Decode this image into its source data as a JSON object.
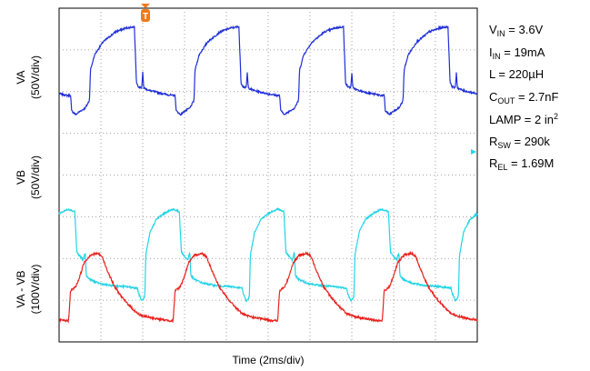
{
  "chart_data": {
    "type": "line",
    "title": "",
    "xlabel": "Time (2ms/div)",
    "grid": true,
    "grid_divisions": {
      "x": 10,
      "y": 8
    },
    "x_range_ms": [
      0,
      20
    ],
    "trigger_marker": "T",
    "period_ms": 5.0,
    "series": [
      {
        "name": "VA",
        "ylabel_line1": "VA",
        "ylabel_line2": "(50V/div)",
        "color": "#1f2fd6",
        "shape": [
          [
            0.0,
            0.0
          ],
          [
            0.15,
            0.0
          ],
          [
            0.2,
            -0.6
          ],
          [
            0.4,
            -0.75
          ],
          [
            0.6,
            -0.62
          ],
          [
            0.85,
            -0.5
          ],
          [
            1.05,
            -0.2
          ],
          [
            1.1,
            1.0
          ],
          [
            1.3,
            1.6
          ],
          [
            1.7,
            2.1
          ],
          [
            2.3,
            2.5
          ],
          [
            2.8,
            2.65
          ],
          [
            3.2,
            2.7
          ],
          [
            3.3,
            0.5
          ],
          [
            3.4,
            0.35
          ],
          [
            3.55,
            0.3
          ],
          [
            3.6,
            0.9
          ],
          [
            3.65,
            0.3
          ],
          [
            3.9,
            0.2
          ],
          [
            4.4,
            0.1
          ],
          [
            5.0,
            0.0
          ]
        ]
      },
      {
        "name": "VB",
        "ylabel_line1": "VB",
        "ylabel_line2": "(50V/div)",
        "color": "#22d4e6",
        "shape": [
          [
            0.0,
            0.0
          ],
          [
            0.3,
            -0.1
          ],
          [
            0.4,
            -1.7
          ],
          [
            0.6,
            -1.9
          ],
          [
            0.7,
            -2.0
          ],
          [
            0.8,
            -1.7
          ],
          [
            0.85,
            -2.6
          ],
          [
            1.0,
            -2.75
          ],
          [
            1.4,
            -2.9
          ],
          [
            2.0,
            -3.0
          ],
          [
            2.8,
            -3.05
          ],
          [
            3.3,
            -3.1
          ],
          [
            3.35,
            -3.3
          ],
          [
            3.5,
            -3.6
          ],
          [
            3.65,
            -3.45
          ],
          [
            3.7,
            -1.8
          ],
          [
            3.9,
            -0.9
          ],
          [
            4.2,
            -0.4
          ],
          [
            4.6,
            -0.15
          ],
          [
            5.0,
            0.0
          ]
        ]
      },
      {
        "name": "VA - VB",
        "ylabel_line1": "VA - VB",
        "ylabel_line2": "(100V/div)",
        "color": "#e8231e",
        "shape": [
          [
            0.0,
            0.0
          ],
          [
            0.1,
            1.0
          ],
          [
            0.35,
            1.15
          ],
          [
            0.5,
            1.4
          ],
          [
            0.75,
            1.95
          ],
          [
            1.05,
            2.2
          ],
          [
            1.4,
            2.25
          ],
          [
            1.6,
            2.15
          ],
          [
            1.85,
            1.7
          ],
          [
            2.2,
            1.15
          ],
          [
            2.6,
            0.75
          ],
          [
            3.0,
            0.45
          ],
          [
            3.3,
            0.25
          ],
          [
            3.5,
            0.18
          ],
          [
            4.0,
            0.1
          ],
          [
            4.6,
            0.03
          ],
          [
            5.0,
            0.0
          ]
        ]
      }
    ]
  },
  "parameters": [
    {
      "main": "V",
      "sub": "IN",
      "sup": "",
      "rest": " = 3.6V"
    },
    {
      "main": "I",
      "sub": "IN",
      "sup": "",
      "rest": " = 19mA"
    },
    {
      "main": "L = 220µH",
      "sub": "",
      "sup": "",
      "rest": ""
    },
    {
      "main": "C",
      "sub": "OUT",
      "sup": "",
      "rest": " = 2.7nF"
    },
    {
      "main": "LAMP = 2 in",
      "sub": "",
      "sup": "2",
      "rest": ""
    },
    {
      "main": "R",
      "sub": "SW",
      "sup": "",
      "rest": " = 290k"
    },
    {
      "main": "R",
      "sub": "EL",
      "sup": "",
      "rest": " = 1.69M"
    }
  ]
}
